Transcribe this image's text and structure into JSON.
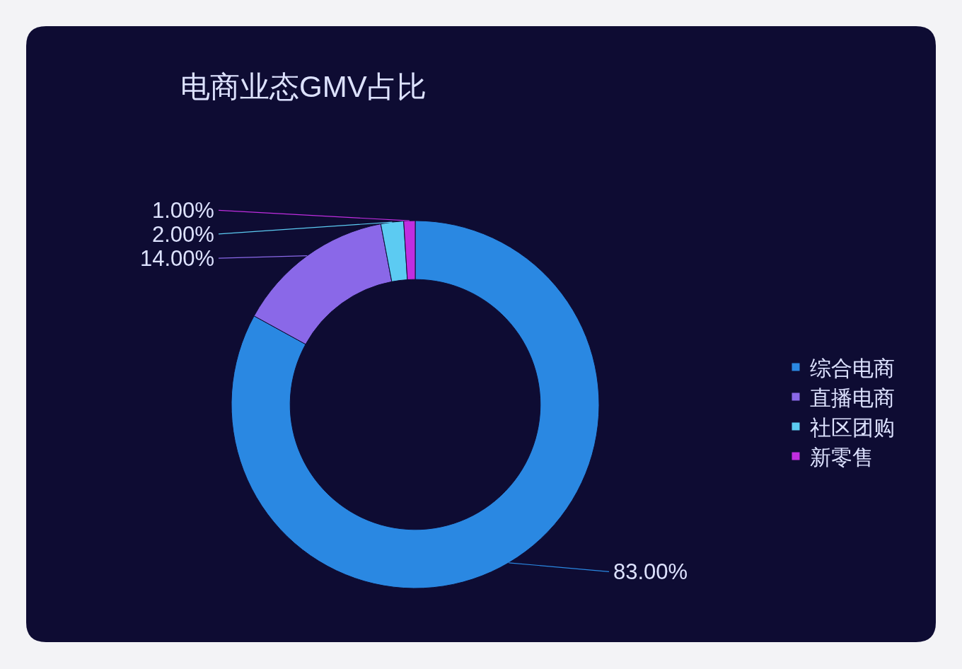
{
  "chart_data": {
    "type": "donut",
    "title": "电商业态GMV占比",
    "categories": [
      "综合电商",
      "直播电商",
      "社区团购",
      "新零售"
    ],
    "values": [
      83,
      14,
      2,
      1
    ],
    "colors": [
      "#2a88e2",
      "#8a68e8",
      "#5ccbf2",
      "#c02ee0"
    ],
    "value_labels": [
      "83.00%",
      "14.00%",
      "2.00%",
      "1.00%"
    ],
    "legend": "right"
  }
}
